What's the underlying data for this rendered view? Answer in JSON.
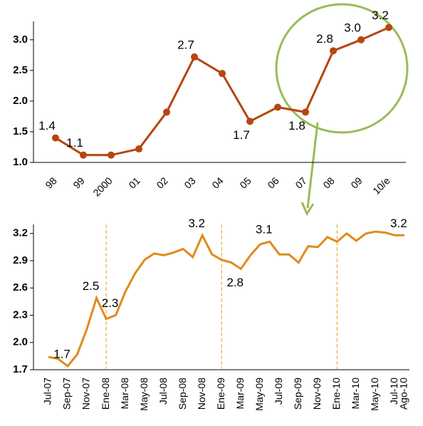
{
  "chart_data": [
    {
      "type": "line",
      "categories": [
        "98",
        "99",
        "2000",
        "01",
        "02",
        "03",
        "04",
        "05",
        "06",
        "07",
        "08",
        "09",
        "10/e"
      ],
      "series": [
        {
          "color": "#b5460f",
          "values": [
            1.4,
            1.12,
            1.12,
            1.22,
            1.82,
            2.72,
            2.45,
            1.67,
            1.9,
            1.82,
            2.82,
            3.0,
            3.2
          ],
          "value_labels": [
            "1.4",
            "1.1",
            null,
            null,
            null,
            "2.7",
            null,
            "1.7",
            null,
            "1.8",
            "2.8",
            "3.0",
            "3.2"
          ]
        }
      ],
      "ylim": [
        1.0,
        3.3
      ],
      "yticks": [
        {
          "value": 1.0,
          "label": "1.0"
        },
        1.5,
        {
          "value": 2.0,
          "label": "2.0"
        },
        2.5,
        {
          "value": 3.0,
          "label": "3.0"
        }
      ]
    },
    {
      "type": "line",
      "categories": [
        "Jul-07",
        null,
        "Sep-07",
        null,
        "Nov-07",
        null,
        "Ene-08",
        null,
        "Mar-08",
        null,
        "May-08",
        null,
        "Jul-08",
        null,
        "Sep-08",
        null,
        "Nov-08",
        null,
        "Ene-09",
        null,
        "Mar-09",
        null,
        "May-09",
        null,
        "Jul-09",
        null,
        "Sep-09",
        null,
        "Nov-09",
        null,
        "Ene-10",
        null,
        "Mar-10",
        null,
        "May-10",
        null,
        "Jul-10",
        "Ago-10"
      ],
      "series": [
        {
          "color": "#e08a1e",
          "values": [
            1.84,
            1.82,
            1.74,
            1.87,
            2.15,
            2.49,
            2.26,
            2.3,
            2.56,
            2.76,
            2.91,
            2.98,
            2.96,
            2.99,
            3.03,
            2.94,
            3.18,
            2.97,
            2.91,
            2.88,
            2.81,
            2.96,
            3.08,
            3.11,
            2.97,
            2.97,
            2.88,
            3.06,
            3.05,
            3.16,
            3.11,
            3.2,
            3.12,
            3.2,
            3.22,
            3.21,
            3.18,
            3.18
          ],
          "value_labels": [
            null,
            null,
            "1.7",
            null,
            null,
            "2.5",
            null,
            "2.3",
            null,
            null,
            null,
            null,
            null,
            null,
            null,
            null,
            "3.2",
            null,
            null,
            null,
            "2.8",
            null,
            null,
            "3.1",
            null,
            null,
            null,
            null,
            null,
            null,
            null,
            null,
            null,
            null,
            null,
            null,
            null,
            "3.2"
          ]
        }
      ],
      "ylim": [
        1.7,
        3.3
      ],
      "yticks": [
        1.7,
        {
          "value": 2.0,
          "label": "2.0"
        },
        2.3,
        2.6,
        2.9,
        3.2
      ]
    }
  ]
}
